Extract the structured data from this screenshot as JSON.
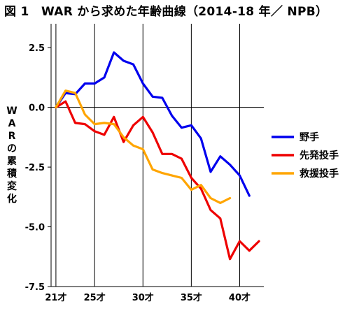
{
  "chart_data": {
    "type": "line",
    "title": "図 1　WAR から求めた年齢曲線（2014-18 年／ NPB）",
    "ylabel": "WARの累積変化",
    "ylim": [
      -7.5,
      3.5
    ],
    "xlim": [
      20.5,
      42.5
    ],
    "yticks": [
      2.5,
      0.0,
      -2.5,
      -5.0,
      -7.5
    ],
    "ytick_labels": [
      "2.5",
      "0.0",
      "-2.5",
      "-5.0",
      "-7.5"
    ],
    "xticks": [
      21,
      25,
      30,
      35,
      40
    ],
    "xtick_labels": [
      "21才",
      "25才",
      "30才",
      "35才",
      "40才"
    ],
    "vertical_gridlines_at": [
      21,
      25,
      30,
      35,
      40
    ],
    "legend_position": "right",
    "series": [
      {
        "name": "野手",
        "color": "#0000ee",
        "x": [
          21,
          22,
          23,
          24,
          25,
          26,
          27,
          28,
          29,
          30,
          31,
          32,
          33,
          34,
          35,
          36,
          37,
          38,
          39,
          40,
          41
        ],
        "y": [
          0.0,
          0.6,
          0.55,
          1.0,
          1.0,
          1.25,
          2.3,
          1.95,
          1.8,
          1.0,
          0.45,
          0.4,
          -0.35,
          -0.85,
          -0.75,
          -1.3,
          -2.7,
          -2.05,
          -2.4,
          -2.85,
          -3.7
        ]
      },
      {
        "name": "先発投手",
        "color": "#ee0000",
        "x": [
          21,
          22,
          23,
          24,
          25,
          26,
          27,
          28,
          29,
          30,
          31,
          32,
          33,
          34,
          35,
          36,
          37,
          38,
          39,
          40,
          41,
          42
        ],
        "y": [
          0.0,
          0.25,
          -0.65,
          -0.7,
          -1.0,
          -1.15,
          -0.4,
          -1.45,
          -0.75,
          -0.4,
          -1.05,
          -1.95,
          -1.95,
          -2.15,
          -2.95,
          -3.4,
          -4.3,
          -4.65,
          -6.35,
          -5.6,
          -6.0,
          -5.6
        ]
      },
      {
        "name": "救援投手",
        "color": "#ffa500",
        "x": [
          21,
          22,
          23,
          24,
          25,
          26,
          27,
          28,
          29,
          30,
          31,
          32,
          33,
          34,
          35,
          36,
          37,
          38,
          39
        ],
        "y": [
          0.0,
          0.7,
          0.6,
          -0.3,
          -0.7,
          -0.65,
          -0.7,
          -1.25,
          -1.6,
          -1.75,
          -2.6,
          -2.75,
          -2.85,
          -2.95,
          -3.45,
          -3.25,
          -3.8,
          -4.0,
          -3.8
        ]
      }
    ]
  }
}
